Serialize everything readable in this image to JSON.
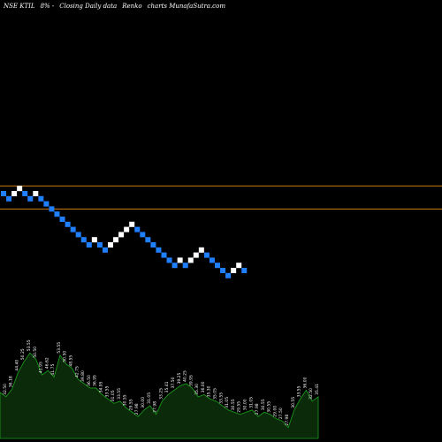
{
  "header": {
    "symbol": "NSE KTIL",
    "change": "8% -",
    "chart_kind": "Closing Daily data",
    "chart_style": "Renko",
    "credit": "charts MunafaSutra.com"
  },
  "colors": {
    "up_brick": "#ffffff",
    "down_brick": "#1f7fff",
    "level_line": "#c8780f",
    "volume_fill": "#0a2a0a",
    "volume_line": "#1aa51a",
    "background": "#000000"
  },
  "chart_data": [
    {
      "type": "renko",
      "bricks": [
        {
          "dir": "down",
          "level": 0
        },
        {
          "dir": "down",
          "level": -1
        },
        {
          "dir": "up",
          "level": 0
        },
        {
          "dir": "up",
          "level": 1
        },
        {
          "dir": "down",
          "level": 0
        },
        {
          "dir": "down",
          "level": -1
        },
        {
          "dir": "up",
          "level": 0
        },
        {
          "dir": "down",
          "level": -1
        },
        {
          "dir": "down",
          "level": -2
        },
        {
          "dir": "down",
          "level": -3
        },
        {
          "dir": "down",
          "level": -4
        },
        {
          "dir": "down",
          "level": -5
        },
        {
          "dir": "down",
          "level": -6
        },
        {
          "dir": "down",
          "level": -7
        },
        {
          "dir": "down",
          "level": -8
        },
        {
          "dir": "down",
          "level": -9
        },
        {
          "dir": "down",
          "level": -10
        },
        {
          "dir": "up",
          "level": -9
        },
        {
          "dir": "down",
          "level": -10
        },
        {
          "dir": "down",
          "level": -11
        },
        {
          "dir": "up",
          "level": -10
        },
        {
          "dir": "up",
          "level": -9
        },
        {
          "dir": "up",
          "level": -8
        },
        {
          "dir": "up",
          "level": -7
        },
        {
          "dir": "up",
          "level": -6
        },
        {
          "dir": "down",
          "level": -7
        },
        {
          "dir": "down",
          "level": -8
        },
        {
          "dir": "down",
          "level": -9
        },
        {
          "dir": "down",
          "level": -10
        },
        {
          "dir": "down",
          "level": -11
        },
        {
          "dir": "down",
          "level": -12
        },
        {
          "dir": "down",
          "level": -13
        },
        {
          "dir": "down",
          "level": -14
        },
        {
          "dir": "up",
          "level": -13
        },
        {
          "dir": "down",
          "level": -14
        },
        {
          "dir": "up",
          "level": -13
        },
        {
          "dir": "up",
          "level": -12
        },
        {
          "dir": "up",
          "level": -11
        },
        {
          "dir": "down",
          "level": -12
        },
        {
          "dir": "down",
          "level": -13
        },
        {
          "dir": "down",
          "level": -14
        },
        {
          "dir": "down",
          "level": -15
        },
        {
          "dir": "down",
          "level": -16
        },
        {
          "dir": "up",
          "level": -15
        },
        {
          "dir": "up",
          "level": -14
        },
        {
          "dir": "down",
          "level": -15
        }
      ],
      "level_lines": [
        2,
        -2.5
      ],
      "grid": false
    },
    {
      "type": "area",
      "series_role": "volume",
      "labels": [
        "35.41",
        "32.50",
        "36.18",
        "44.40",
        "50.25",
        "53.55",
        "50.50",
        "41.95",
        "46.62",
        "41.75",
        "53.55",
        "50.50",
        "48.55",
        "42.75",
        "39.80",
        "36.50",
        "36.95",
        "34.95",
        "33.55",
        "31.05",
        "33.55",
        "30.55",
        "29.55",
        "27.98",
        "30.00",
        "31.05",
        "27.98",
        "33.25",
        "35.41",
        "37.50",
        "39.25",
        "40.25",
        "39.95",
        "35.30",
        "36.00",
        "35.30",
        "35.05",
        "33.55",
        "31.05",
        "30.55",
        "29.55",
        "30.00",
        "31.05",
        "27.98",
        "30.55",
        "30.55",
        "29.00",
        "27.50",
        "27.98",
        "30.55",
        "33.55",
        "36.00",
        "32.50",
        "35.41"
      ],
      "values": [
        42,
        38,
        45,
        60,
        70,
        78,
        72,
        58,
        62,
        56,
        76,
        68,
        64,
        54,
        50,
        46,
        46,
        40,
        36,
        32,
        34,
        28,
        24,
        20,
        26,
        30,
        22,
        34,
        40,
        44,
        48,
        50,
        46,
        38,
        40,
        36,
        34,
        30,
        26,
        24,
        22,
        24,
        26,
        20,
        24,
        22,
        18,
        16,
        10,
        26,
        36,
        44,
        34,
        38
      ],
      "ylim": [
        0,
        100
      ]
    }
  ]
}
